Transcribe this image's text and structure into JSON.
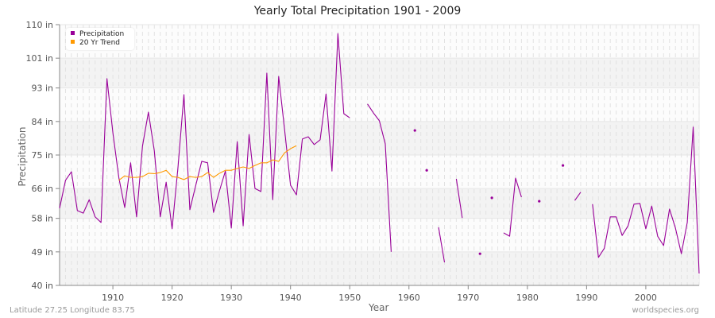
{
  "title": "Yearly Total Precipitation 1901 - 2009",
  "footer": {
    "left": "Latitude 27.25 Longitude 83.75",
    "right": "worldspecies.org"
  },
  "legend": {
    "items": [
      {
        "label": "Precipitation",
        "color": "#990099"
      },
      {
        "label": "20 Yr Trend",
        "color": "#ff9900"
      }
    ]
  },
  "chart_data": {
    "type": "line",
    "title": "Yearly Total Precipitation 1901 - 2009",
    "xlabel": "Year",
    "ylabel": "Precipitation",
    "xlim": [
      1901,
      2009
    ],
    "ylim": [
      40,
      110
    ],
    "x_ticks": [
      1910,
      1920,
      1930,
      1940,
      1950,
      1960,
      1970,
      1980,
      1990,
      2000
    ],
    "y_ticks": [
      {
        "value": 110,
        "label": "110 in"
      },
      {
        "value": 101,
        "label": "101 in"
      },
      {
        "value": 93,
        "label": "93 in"
      },
      {
        "value": 84,
        "label": "84 in"
      },
      {
        "value": 75,
        "label": "75 in"
      },
      {
        "value": 66,
        "label": "66 in"
      },
      {
        "value": 58,
        "label": "58 in"
      },
      {
        "value": 49,
        "label": "49 in"
      },
      {
        "value": 40,
        "label": "40 in"
      }
    ],
    "grid": true,
    "legend_position": "top-left",
    "series": [
      {
        "name": "Precipitation",
        "color": "#990099",
        "points": [
          [
            1901,
            60.7
          ],
          [
            1902,
            68.2
          ],
          [
            1903,
            70.5
          ],
          [
            1904,
            60.1
          ],
          [
            1905,
            59.4
          ],
          [
            1906,
            63.0
          ],
          [
            1907,
            58.4
          ],
          [
            1908,
            56.9
          ],
          [
            1909,
            95.5
          ],
          [
            1910,
            81.0
          ],
          [
            1911,
            69.0
          ],
          [
            1912,
            60.9
          ],
          [
            1913,
            72.9
          ],
          [
            1914,
            58.4
          ],
          [
            1915,
            77.4
          ],
          [
            1916,
            86.5
          ],
          [
            1917,
            76.1
          ],
          [
            1918,
            58.4
          ],
          [
            1919,
            67.7
          ],
          [
            1920,
            55.2
          ],
          [
            1921,
            71.8
          ],
          [
            1922,
            91.2
          ],
          [
            1923,
            60.3
          ],
          [
            1924,
            66.9
          ],
          [
            1925,
            73.3
          ],
          [
            1926,
            72.9
          ],
          [
            1927,
            59.6
          ],
          [
            1928,
            65.4
          ],
          [
            1929,
            70.7
          ],
          [
            1930,
            55.4
          ],
          [
            1931,
            78.6
          ],
          [
            1932,
            56.0
          ],
          [
            1933,
            80.5
          ],
          [
            1934,
            66.0
          ],
          [
            1935,
            65.2
          ],
          [
            1936,
            97.0
          ],
          [
            1937,
            63.0
          ],
          [
            1938,
            96.1
          ],
          [
            1939,
            81.8
          ],
          [
            1940,
            66.9
          ],
          [
            1941,
            64.3
          ],
          [
            1942,
            79.3
          ],
          [
            1943,
            79.9
          ],
          [
            1944,
            77.8
          ],
          [
            1945,
            79.1
          ],
          [
            1946,
            91.4
          ],
          [
            1947,
            70.7
          ],
          [
            1948,
            107.6
          ],
          [
            1949,
            86.1
          ],
          [
            1950,
            85.0
          ],
          [
            1951,
            null
          ],
          [
            1952,
            null
          ],
          [
            1953,
            88.7
          ],
          [
            1954,
            86.3
          ],
          [
            1955,
            84.2
          ],
          [
            1956,
            78.0
          ],
          [
            1957,
            49.0
          ],
          [
            1958,
            null
          ],
          [
            1959,
            null
          ],
          [
            1960,
            null
          ],
          [
            1961,
            81.6
          ],
          [
            1962,
            null
          ],
          [
            1963,
            70.9
          ],
          [
            1964,
            null
          ],
          [
            1965,
            55.6
          ],
          [
            1966,
            46.2
          ],
          [
            1967,
            null
          ],
          [
            1968,
            68.6
          ],
          [
            1969,
            58.1
          ],
          [
            1970,
            null
          ],
          [
            1971,
            null
          ],
          [
            1972,
            48.5
          ],
          [
            1973,
            null
          ],
          [
            1974,
            63.5
          ],
          [
            1975,
            null
          ],
          [
            1976,
            54.1
          ],
          [
            1977,
            53.2
          ],
          [
            1978,
            68.8
          ],
          [
            1979,
            63.7
          ],
          [
            1980,
            null
          ],
          [
            1981,
            null
          ],
          [
            1982,
            62.6
          ],
          [
            1983,
            null
          ],
          [
            1984,
            null
          ],
          [
            1985,
            null
          ],
          [
            1986,
            72.2
          ],
          [
            1987,
            null
          ],
          [
            1988,
            62.8
          ],
          [
            1989,
            65.0
          ],
          [
            1990,
            null
          ],
          [
            1991,
            61.8
          ],
          [
            1992,
            47.5
          ],
          [
            1993,
            50.0
          ],
          [
            1994,
            58.4
          ],
          [
            1995,
            58.4
          ],
          [
            1996,
            53.4
          ],
          [
            1997,
            56.0
          ],
          [
            1998,
            61.8
          ],
          [
            1999,
            62.0
          ],
          [
            2000,
            55.2
          ],
          [
            2001,
            61.3
          ],
          [
            2002,
            53.2
          ],
          [
            2003,
            50.7
          ],
          [
            2004,
            60.5
          ],
          [
            2005,
            55.4
          ],
          [
            2006,
            48.5
          ],
          [
            2007,
            56.9
          ],
          [
            2008,
            82.5
          ],
          [
            2009,
            43.2
          ]
        ]
      },
      {
        "name": "20 Yr Trend",
        "color": "#ff9900",
        "points": [
          [
            1911,
            68.2
          ],
          [
            1912,
            69.4
          ],
          [
            1913,
            69.0
          ],
          [
            1914,
            69.0
          ],
          [
            1915,
            69.2
          ],
          [
            1916,
            70.1
          ],
          [
            1917,
            70.0
          ],
          [
            1918,
            70.3
          ],
          [
            1919,
            70.9
          ],
          [
            1920,
            69.2
          ],
          [
            1921,
            69.0
          ],
          [
            1922,
            68.4
          ],
          [
            1923,
            69.2
          ],
          [
            1924,
            69.0
          ],
          [
            1925,
            69.2
          ],
          [
            1926,
            70.3
          ],
          [
            1927,
            69.0
          ],
          [
            1928,
            70.1
          ],
          [
            1929,
            70.9
          ],
          [
            1930,
            70.9
          ],
          [
            1931,
            71.4
          ],
          [
            1932,
            71.8
          ],
          [
            1933,
            71.4
          ],
          [
            1934,
            72.2
          ],
          [
            1935,
            72.9
          ],
          [
            1936,
            72.9
          ],
          [
            1937,
            73.7
          ],
          [
            1938,
            73.3
          ],
          [
            1939,
            75.6
          ],
          [
            1940,
            76.7
          ],
          [
            1941,
            77.5
          ]
        ]
      }
    ]
  }
}
